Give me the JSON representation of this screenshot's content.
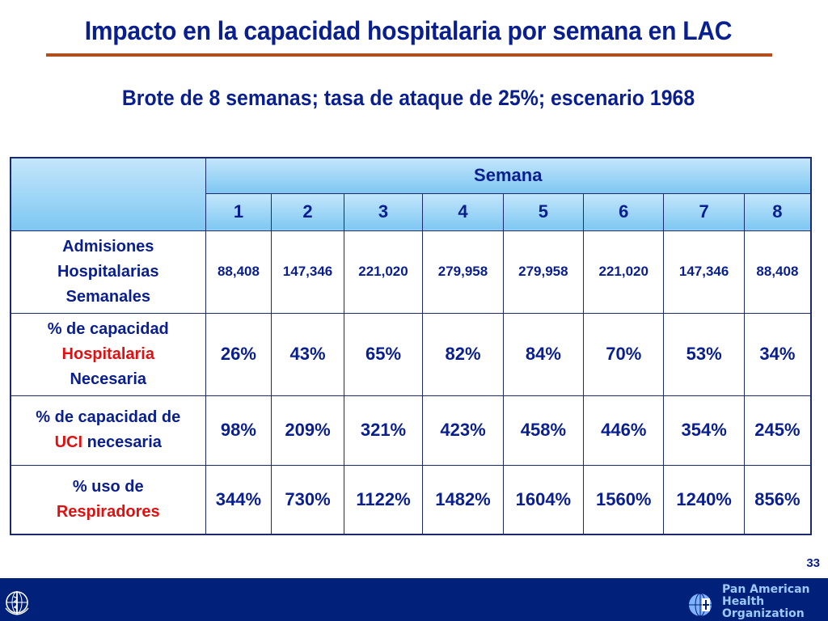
{
  "title": "Impacto en la capacidad hospitalaria por semana en LAC",
  "subtitle": "Brote de 8 semanas; tasa de ataque de 25%; escenario 1968",
  "table": {
    "header": {
      "group_label": "Semana",
      "weeks": [
        "1",
        "2",
        "3",
        "4",
        "5",
        "6",
        "7",
        "8"
      ]
    },
    "rows": [
      {
        "label_lines": [
          "Admisiones",
          "Hospitalarias",
          "Semanales"
        ],
        "values": [
          "88,408",
          "147,346",
          "221,020",
          "279,958",
          "279,958",
          "221,020",
          "147,346",
          "88,408"
        ]
      },
      {
        "label_line1": "% de capacidad",
        "label_red": "Hospitalaria",
        "label_line3": "Necesaria",
        "values": [
          "26%",
          "43%",
          "65%",
          "82%",
          "84%",
          "70%",
          "53%",
          "34%"
        ]
      },
      {
        "label_line1": "% de capacidad de",
        "label_red": "UCI",
        "label_rest": " necesaria",
        "values": [
          "98%",
          "209%",
          "321%",
          "423%",
          "458%",
          "446%",
          "354%",
          "245%"
        ]
      },
      {
        "label_line1": "% uso de",
        "label_red": "Respiradores",
        "values": [
          "344%",
          "730%",
          "1122%",
          "1482%",
          "1604%",
          "1560%",
          "1240%",
          "856%"
        ]
      }
    ]
  },
  "page_number": "33",
  "footer": {
    "org_lines": [
      "Pan American",
      "Health",
      "Organization"
    ],
    "left_logo_icon": "who-emblem-icon",
    "right_logo_icon": "paho-emblem-icon"
  },
  "colors": {
    "title": "#0a1f8f",
    "rule": "#b0501f",
    "highlight_red": "#e01010",
    "header_fill": "#7dc7f2",
    "footer_bar": "#00207a"
  }
}
